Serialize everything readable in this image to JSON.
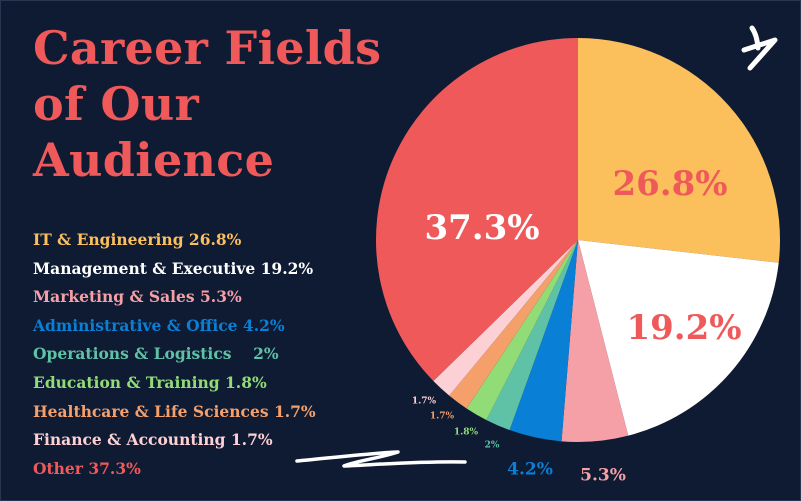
{
  "title": {
    "line1": "Career Fields",
    "line2": "of Our",
    "line3": "Audience"
  },
  "legend": [
    {
      "text": "IT & Engineering 26.8%",
      "color": "#fbbf5c"
    },
    {
      "text": "Management & Executive 19.2%",
      "color": "#ffffff"
    },
    {
      "text": "Marketing & Sales 5.3%",
      "color": "#f5a0a6"
    },
    {
      "text": "Administrative & Office 4.2%",
      "color": "#0a7fd6"
    },
    {
      "text": "Operations & Logistics    2%",
      "color": "#5fc2a6"
    },
    {
      "text": "Education & Training 1.8%",
      "color": "#92dc77"
    },
    {
      "text": "Healthcare & Life Sciences 1.7%",
      "color": "#f5a06a"
    },
    {
      "text": "Finance & Accounting 1.7%",
      "color": "#fcd0d4"
    },
    {
      "text": "Other 37.3%",
      "color": "#f0595a"
    }
  ],
  "chart_data": {
    "type": "pie",
    "title": "Career Fields of Our Audience",
    "slices": [
      {
        "name": "IT & Engineering",
        "value": 26.8,
        "label": "26.8%",
        "color": "#fbbf5c",
        "label_color": "#f0595a"
      },
      {
        "name": "Management & Executive",
        "value": 19.2,
        "label": "19.2%",
        "color": "#ffffff",
        "label_color": "#f0595a"
      },
      {
        "name": "Marketing & Sales",
        "value": 5.3,
        "label": "5.3%",
        "color": "#f5a0a6",
        "label_color": "#f5a0a6"
      },
      {
        "name": "Administrative & Office",
        "value": 4.2,
        "label": "4.2%",
        "color": "#0a7fd6",
        "label_color": "#0a7fd6"
      },
      {
        "name": "Operations & Logistics",
        "value": 2,
        "label": "2%",
        "color": "#5fc2a6",
        "label_color": "#5fc2a6"
      },
      {
        "name": "Education & Training",
        "value": 1.8,
        "label": "1.8%",
        "color": "#92dc77",
        "label_color": "#92dc77"
      },
      {
        "name": "Healthcare & Life Sciences",
        "value": 1.7,
        "label": "1.7%",
        "color": "#f5a06a",
        "label_color": "#f5a06a"
      },
      {
        "name": "Finance & Accounting",
        "value": 1.7,
        "label": "1.7%",
        "color": "#fcd0d4",
        "label_color": "#fcd0d4"
      },
      {
        "name": "Other",
        "value": 37.3,
        "label": "37.3%",
        "color": "#f0595a",
        "label_color": "#ffffff"
      }
    ],
    "start": "12 o'clock",
    "direction": "clockwise",
    "legend_placement": "left"
  },
  "decor": {
    "squiggle_color": "#ffffff",
    "logo_color": "#ffffff"
  }
}
